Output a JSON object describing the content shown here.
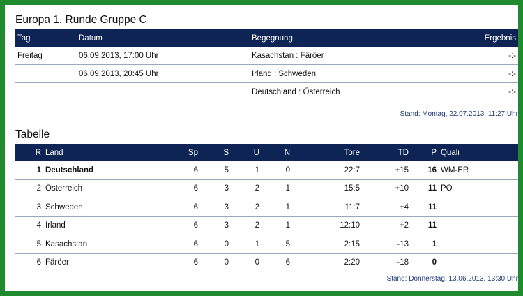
{
  "title": "Europa 1. Runde Gruppe C",
  "games": {
    "headers": {
      "tag": "Tag",
      "datum": "Datum",
      "begegnung": "Begegnung",
      "ergebnis": "Ergebnis"
    },
    "rows": [
      {
        "tag": "Freitag",
        "datum": "06.09.2013, 17:00 Uhr",
        "begegnung": "Kasachstan : Färöer",
        "ergebnis": "-:-"
      },
      {
        "tag": "",
        "datum": "06.09.2013, 20:45 Uhr",
        "begegnung": "Irland : Schweden",
        "ergebnis": "-:-"
      },
      {
        "tag": "",
        "datum": "",
        "begegnung": "Deutschland : Österreich",
        "ergebnis": "-:-"
      }
    ],
    "stand": "Stand: Montag, 22.07.2013, 11:27 Uhr"
  },
  "tabelle": {
    "title": "Tabelle",
    "headers": {
      "r": "R",
      "land": "Land",
      "sp": "Sp",
      "s": "S",
      "u": "U",
      "n": "N",
      "tore": "Tore",
      "td": "TD",
      "p": "P",
      "quali": "Quali"
    },
    "rows": [
      {
        "r": "1",
        "land": "Deutschland",
        "sp": "6",
        "s": "5",
        "u": "1",
        "n": "0",
        "tore": "22:7",
        "td": "+15",
        "p": "16",
        "quali": "WM-ER"
      },
      {
        "r": "2",
        "land": "Österreich",
        "sp": "6",
        "s": "3",
        "u": "2",
        "n": "1",
        "tore": "15:5",
        "td": "+10",
        "p": "11",
        "quali": "PO"
      },
      {
        "r": "3",
        "land": "Schweden",
        "sp": "6",
        "s": "3",
        "u": "2",
        "n": "1",
        "tore": "11:7",
        "td": "+4",
        "p": "11",
        "quali": ""
      },
      {
        "r": "4",
        "land": "Irland",
        "sp": "6",
        "s": "3",
        "u": "2",
        "n": "1",
        "tore": "12:10",
        "td": "+2",
        "p": "11",
        "quali": ""
      },
      {
        "r": "5",
        "land": "Kasachstan",
        "sp": "6",
        "s": "0",
        "u": "1",
        "n": "5",
        "tore": "2:15",
        "td": "-13",
        "p": "1",
        "quali": ""
      },
      {
        "r": "6",
        "land": "Färöer",
        "sp": "6",
        "s": "0",
        "u": "0",
        "n": "6",
        "tore": "2:20",
        "td": "-18",
        "p": "0",
        "quali": ""
      }
    ],
    "stand": "Stand: Donnerstag, 13.06.2013, 13:30 Uhr"
  },
  "colors": {
    "frame": "#1f8a2e",
    "header_bg": "#0e2454",
    "stand_text": "#1f3a78"
  }
}
